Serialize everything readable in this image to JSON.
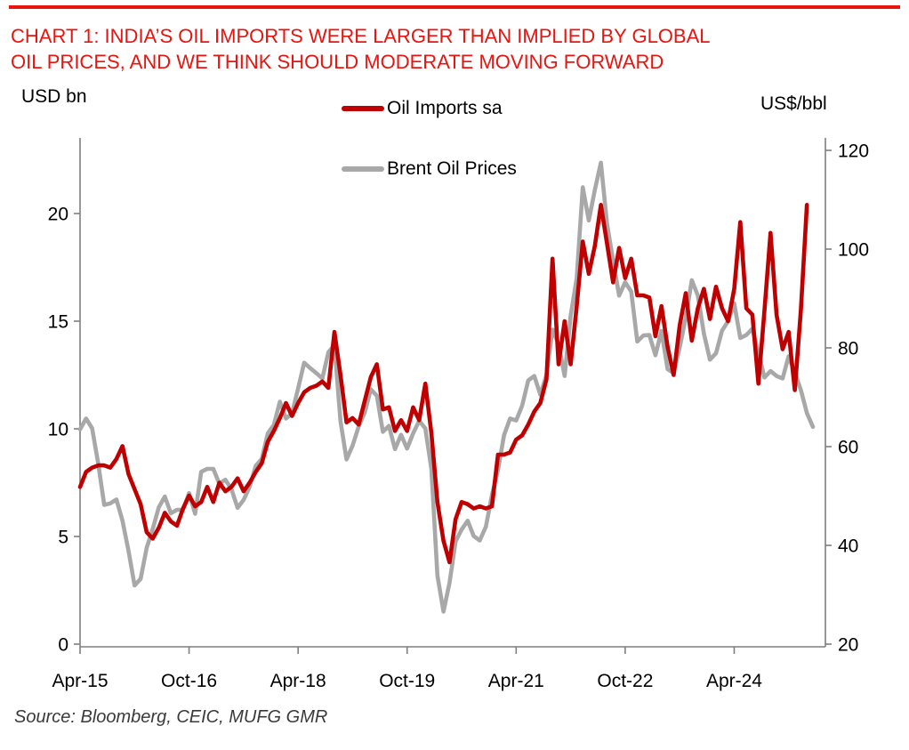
{
  "header": {
    "title_line1": "CHART 1: INDIA’S OIL IMPORTS WERE LARGER THAN IMPLIED BY GLOBAL",
    "title_line2": "OIL PRICES, AND WE THINK SHOULD MODERATE MOVING FORWARD",
    "rule_color": "#e8140f"
  },
  "axis_labels": {
    "left": "USD bn",
    "right": "US$/bbl"
  },
  "legend": {
    "items": [
      {
        "label": "Oil Imports sa",
        "color": "#c00000"
      },
      {
        "label": "Brent Oil Prices",
        "color": "#a8a8a8"
      }
    ]
  },
  "source_note": "Source: Bloomberg, CEIC, MUFG GMR",
  "colors": {
    "accent_red": "#e8140f",
    "imports_line": "#c00000",
    "brent_line": "#a8a8a8",
    "axis_gray": "#7f7f7f"
  },
  "chart_data": {
    "type": "line",
    "title": "CHART 1: INDIA’S OIL IMPORTS WERE LARGER THAN IMPLIED BY GLOBAL OIL PRICES, AND WE THINK SHOULD MODERATE MOVING FORWARD",
    "frequency": "monthly",
    "x_start": "Apr-2015",
    "x_tick_labels": [
      "Apr-15",
      "Oct-16",
      "Apr-18",
      "Oct-19",
      "Apr-21",
      "Oct-22",
      "Apr-24"
    ],
    "x_tick_month_index": [
      0,
      18,
      36,
      54,
      72,
      90,
      108
    ],
    "left_axis": {
      "label": "USD bn",
      "ticks": [
        0,
        5,
        10,
        15,
        20
      ],
      "range": [
        0,
        23.5
      ]
    },
    "right_axis": {
      "label": "US$/bbl",
      "ticks": [
        20,
        40,
        60,
        80,
        100,
        120
      ],
      "range": [
        20,
        123
      ]
    },
    "grid": false,
    "legend_position": "top",
    "series": [
      {
        "name": "Brent Oil Prices",
        "axis": "right",
        "color": "#a8a8a8",
        "unit": "US$/bbl",
        "values": [
          63.5,
          65.7,
          63.7,
          56.6,
          48.2,
          48.5,
          49.3,
          45.0,
          38.9,
          31.9,
          33.2,
          39.5,
          43.3,
          47.7,
          49.9,
          46.5,
          47.2,
          47.2,
          50.6,
          46.4,
          54.9,
          55.5,
          55.5,
          52.5,
          53.3,
          51.4,
          47.6,
          49.2,
          51.9,
          56.1,
          57.5,
          62.7,
          64.4,
          69.1,
          65.7,
          66.7,
          71.8,
          77.0,
          75.9,
          74.9,
          73.8,
          79.1,
          80.6,
          65.2,
          57.4,
          60.2,
          64.1,
          66.9,
          71.6,
          70.3,
          63.0,
          64.2,
          59.5,
          62.4,
          59.6,
          62.7,
          65.2,
          63.7,
          55.5,
          33.9,
          26.6,
          32.4,
          40.8,
          43.2,
          45.0,
          41.9,
          41.0,
          43.8,
          50.2,
          55.3,
          62.3,
          65.7,
          65.3,
          68.3,
          73.4,
          74.3,
          70.5,
          74.5,
          83.7,
          80.8,
          74.3,
          86.5,
          94.1,
          112.5,
          105.8,
          112.0,
          117.5,
          105.1,
          97.7,
          90.6,
          93.3,
          91.4,
          81.3,
          82.5,
          82.6,
          78.5,
          83.4,
          75.7,
          74.9,
          80.1,
          86.1,
          93.7,
          90.6,
          82.9,
          77.6,
          78.9,
          83.5,
          85.4,
          89.0,
          82.0,
          82.6,
          83.9,
          78.9,
          74.0,
          75.3,
          74.3,
          73.8,
          78.3,
          75.0,
          71.5,
          66.8,
          64.0
        ]
      },
      {
        "name": "Oil Imports sa",
        "axis": "left",
        "color": "#c00000",
        "unit": "USD bn",
        "values": [
          7.3,
          8.0,
          8.2,
          8.3,
          8.3,
          8.2,
          8.6,
          9.2,
          7.9,
          7.2,
          6.5,
          5.2,
          4.9,
          5.4,
          6.1,
          5.7,
          5.5,
          6.3,
          6.9,
          6.4,
          6.6,
          7.3,
          6.6,
          7.5,
          7.1,
          7.3,
          7.7,
          7.1,
          7.5,
          8.0,
          8.4,
          9.4,
          9.9,
          10.5,
          11.2,
          10.6,
          11.2,
          11.7,
          11.9,
          12.0,
          12.2,
          11.9,
          14.5,
          12.5,
          10.3,
          10.5,
          10.2,
          11.3,
          12.4,
          13.0,
          10.9,
          11.0,
          9.9,
          10.4,
          9.9,
          11.0,
          10.4,
          12.1,
          9.8,
          6.6,
          4.8,
          3.8,
          5.8,
          6.6,
          6.5,
          6.3,
          6.4,
          6.3,
          6.4,
          8.8,
          8.8,
          8.9,
          9.5,
          9.7,
          10.2,
          10.8,
          11.2,
          12.3,
          17.9,
          13.0,
          15.0,
          13.0,
          15.7,
          18.7,
          17.2,
          18.5,
          20.4,
          18.6,
          16.8,
          18.4,
          17.0,
          17.9,
          16.2,
          16.2,
          16.1,
          14.3,
          15.7,
          13.8,
          12.5,
          14.8,
          16.3,
          14.1,
          15.6,
          16.5,
          15.1,
          16.6,
          15.6,
          15.0,
          16.5,
          19.6,
          15.6,
          15.3,
          12.1,
          15.5,
          19.1,
          15.3,
          13.7,
          14.5,
          11.8,
          15.5,
          20.4
        ]
      }
    ]
  }
}
